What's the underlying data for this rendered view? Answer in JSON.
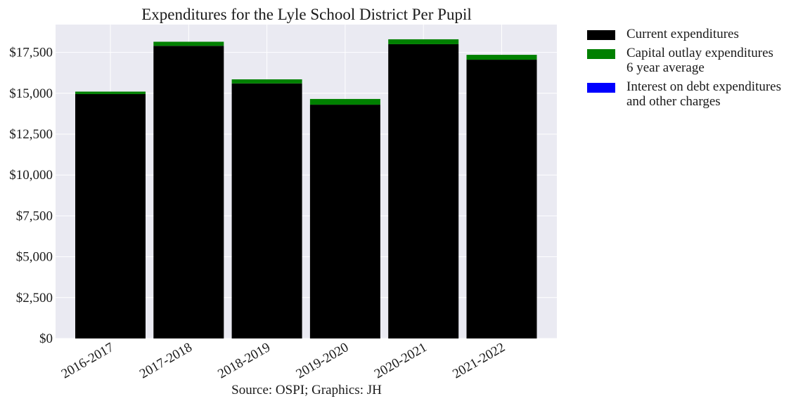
{
  "chart_data": {
    "type": "bar",
    "stacked": true,
    "title": "Expenditures for the Lyle School District Per Pupil",
    "xlabel": "Source: OSPI; Graphics: JH",
    "ylabel": "",
    "categories": [
      "2016-2017",
      "2017-2018",
      "2018-2019",
      "2019-2020",
      "2020-2021",
      "2021-2022"
    ],
    "series": [
      {
        "name": "Current expenditures",
        "color": "#000000",
        "values": [
          14950,
          17900,
          15600,
          14300,
          18000,
          17050
        ]
      },
      {
        "name": "Capital outlay expenditures\n6 year average",
        "color": "#008000",
        "values": [
          150,
          250,
          250,
          350,
          300,
          300
        ]
      },
      {
        "name": "Interest on debt expenditures\nand other charges",
        "color": "#0000ff",
        "values": [
          0,
          0,
          0,
          0,
          0,
          0
        ]
      }
    ],
    "ylim": [
      0,
      19200
    ],
    "yticks": [
      0,
      2500,
      5000,
      7500,
      10000,
      12500,
      15000,
      17500
    ],
    "ytick_labels": [
      "$0",
      "$2,500",
      "$5,000",
      "$7,500",
      "$10,000",
      "$12,500",
      "$15,000",
      "$17,500"
    ],
    "grid": true,
    "legend_position": "outside-right-top",
    "background": "#eaeaf2"
  }
}
